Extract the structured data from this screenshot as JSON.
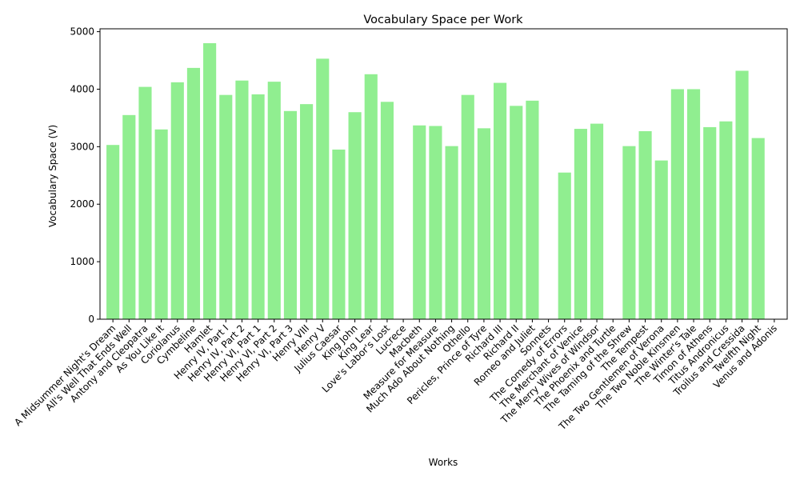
{
  "chart_data": {
    "type": "bar",
    "title": "Vocabulary Space per Work",
    "xlabel": "Works",
    "ylabel": "Vocabulary Space (V)",
    "ylim": [
      0,
      5050
    ],
    "yticks": [
      0,
      1000,
      2000,
      3000,
      4000,
      5000
    ],
    "grid": false,
    "legend": "none",
    "bar_color": "#90ee90",
    "categories": [
      "A Midsummer Night's Dream",
      "All's Well That Ends Well",
      "Antony and Cleopatra",
      "As You Like It",
      "Coriolanus",
      "Cymbeline",
      "Hamlet",
      "Henry IV, Part I",
      "Henry IV, Part 2",
      "Henry VI, Part 1",
      "Henry VI, Part 2",
      "Henry VI, Part 3",
      "Henry VIII",
      "Henry V",
      "Julius Caesar",
      "King John",
      "King Lear",
      "Love's Labor's Lost",
      "Lucrece",
      "Macbeth",
      "Measure for Measure",
      "Much Ado About Nothing",
      "Othello",
      "Pericles, Prince of Tyre",
      "Richard III",
      "Richard II",
      "Romeo and Juliet",
      "Sonnets",
      "The Comedy of Errors",
      "The Merchant of Venice",
      "The Merry Wives of Windsor",
      "The Phoenix and Turtle",
      "The Taming of the Shrew",
      "The Tempest",
      "The Two Gentlemen of Verona",
      "The Two Noble Kinsmen",
      "The Winter's Tale",
      "Timon of Athens",
      "Titus Andronicus",
      "Troilus and Cressida",
      "Twelfth Night",
      "Venus and Adonis"
    ],
    "values": [
      3030,
      3550,
      4040,
      3300,
      4120,
      4370,
      4800,
      3900,
      4150,
      3910,
      4130,
      3620,
      3740,
      4530,
      2950,
      3600,
      4260,
      3780,
      0,
      3370,
      3360,
      3010,
      3900,
      3320,
      4110,
      3710,
      3800,
      0,
      2550,
      3310,
      3400,
      0,
      3010,
      3270,
      2760,
      4000,
      4000,
      3340,
      3440,
      4320,
      3150,
      0
    ]
  }
}
